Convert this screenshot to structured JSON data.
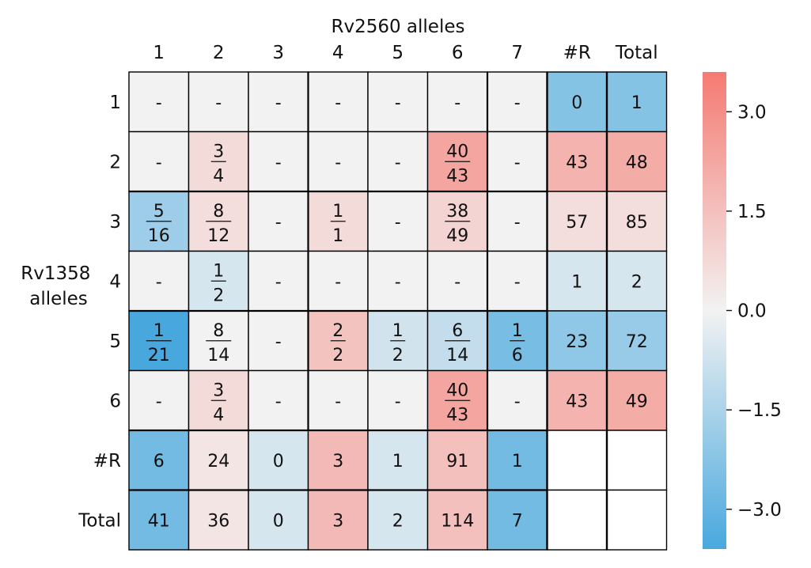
{
  "chart_data": {
    "type": "heatmap",
    "title": "Rv2560 alleles",
    "xlabel": "Rv2560 alleles",
    "ylabel_lines": [
      "Rv1358",
      "alleles"
    ],
    "x_categories": [
      "1",
      "2",
      "3",
      "4",
      "5",
      "6",
      "7",
      "#R",
      "Total"
    ],
    "y_categories": [
      "1",
      "2",
      "3",
      "4",
      "5",
      "6",
      "#R",
      "Total"
    ],
    "cells": [
      [
        {
          "t": "-",
          "v": 0
        },
        {
          "t": "-",
          "v": 0
        },
        {
          "t": "-",
          "v": 0
        },
        {
          "t": "-",
          "v": 0
        },
        {
          "t": "-",
          "v": 0
        },
        {
          "t": "-",
          "v": 0
        },
        {
          "t": "-",
          "v": 0
        },
        {
          "t": "0",
          "v": -2.3
        },
        {
          "t": "1",
          "v": -2.3
        }
      ],
      [
        {
          "t": "-",
          "v": 0
        },
        {
          "n": "3",
          "d": "4",
          "v": 0.7
        },
        {
          "t": "-",
          "v": 0
        },
        {
          "t": "-",
          "v": 0
        },
        {
          "t": "-",
          "v": 0
        },
        {
          "n": "40",
          "d": "43",
          "v": 2.3
        },
        {
          "t": "-",
          "v": 0
        },
        {
          "t": "43",
          "v": 1.9
        },
        {
          "t": "48",
          "v": 2.1
        }
      ],
      [
        {
          "n": "5",
          "d": "16",
          "v": -1.8
        },
        {
          "n": "8",
          "d": "12",
          "v": 0.6
        },
        {
          "t": "-",
          "v": 0
        },
        {
          "n": "1",
          "d": "1",
          "v": 0.7
        },
        {
          "t": "-",
          "v": 0
        },
        {
          "n": "38",
          "d": "49",
          "v": 0.9
        },
        {
          "t": "-",
          "v": 0
        },
        {
          "t": "57",
          "v": 0.6
        },
        {
          "t": "85",
          "v": 0.6
        }
      ],
      [
        {
          "t": "-",
          "v": 0
        },
        {
          "n": "1",
          "d": "2",
          "v": -0.6
        },
        {
          "t": "-",
          "v": 0
        },
        {
          "t": "-",
          "v": 0
        },
        {
          "t": "-",
          "v": 0
        },
        {
          "t": "-",
          "v": 0
        },
        {
          "t": "-",
          "v": 0
        },
        {
          "t": "1",
          "v": -0.6
        },
        {
          "t": "2",
          "v": -0.6
        }
      ],
      [
        {
          "n": "1",
          "d": "21",
          "v": -3.6
        },
        {
          "n": "8",
          "d": "14",
          "v": 0
        },
        {
          "t": "-",
          "v": 0
        },
        {
          "n": "2",
          "d": "2",
          "v": 1.4
        },
        {
          "n": "1",
          "d": "2",
          "v": -0.7
        },
        {
          "n": "6",
          "d": "14",
          "v": -1.0
        },
        {
          "n": "1",
          "d": "6",
          "v": -2.6
        },
        {
          "t": "23",
          "v": -2.1
        },
        {
          "t": "72",
          "v": -1.9
        }
      ],
      [
        {
          "t": "-",
          "v": 0
        },
        {
          "n": "3",
          "d": "4",
          "v": 0.7
        },
        {
          "t": "-",
          "v": 0
        },
        {
          "t": "-",
          "v": 0
        },
        {
          "t": "-",
          "v": 0
        },
        {
          "n": "40",
          "d": "43",
          "v": 2.3
        },
        {
          "t": "-",
          "v": 0
        },
        {
          "t": "43",
          "v": 1.9
        },
        {
          "t": "49",
          "v": 2.1
        }
      ],
      [
        {
          "t": "6",
          "v": -2.7
        },
        {
          "t": "24",
          "v": 0.4
        },
        {
          "t": "0",
          "v": -0.6
        },
        {
          "t": "3",
          "v": 1.7
        },
        {
          "t": "1",
          "v": -0.6
        },
        {
          "t": "91",
          "v": 1.5
        },
        {
          "t": "1",
          "v": -2.7
        },
        {
          "t": "",
          "v": null
        },
        {
          "t": "",
          "v": null
        }
      ],
      [
        {
          "t": "41",
          "v": -2.7
        },
        {
          "t": "36",
          "v": 0.4
        },
        {
          "t": "0",
          "v": -0.6
        },
        {
          "t": "3",
          "v": 1.7
        },
        {
          "t": "2",
          "v": -0.6
        },
        {
          "t": "114",
          "v": 1.5
        },
        {
          "t": "7",
          "v": -2.7
        },
        {
          "t": "",
          "v": null
        },
        {
          "t": "",
          "v": null
        }
      ]
    ],
    "colorbar": {
      "range": [
        -3.6,
        3.6
      ],
      "ticks": [
        "3.0",
        "1.5",
        "0.0",
        "−1.5",
        "−3.0"
      ],
      "tick_values": [
        3.0,
        1.5,
        0.0,
        -1.5,
        -3.0
      ],
      "colors": {
        "negative": "#48a8de",
        "neutral": "#f2f2f2",
        "positive": "#f57a72"
      }
    },
    "grid": true
  }
}
